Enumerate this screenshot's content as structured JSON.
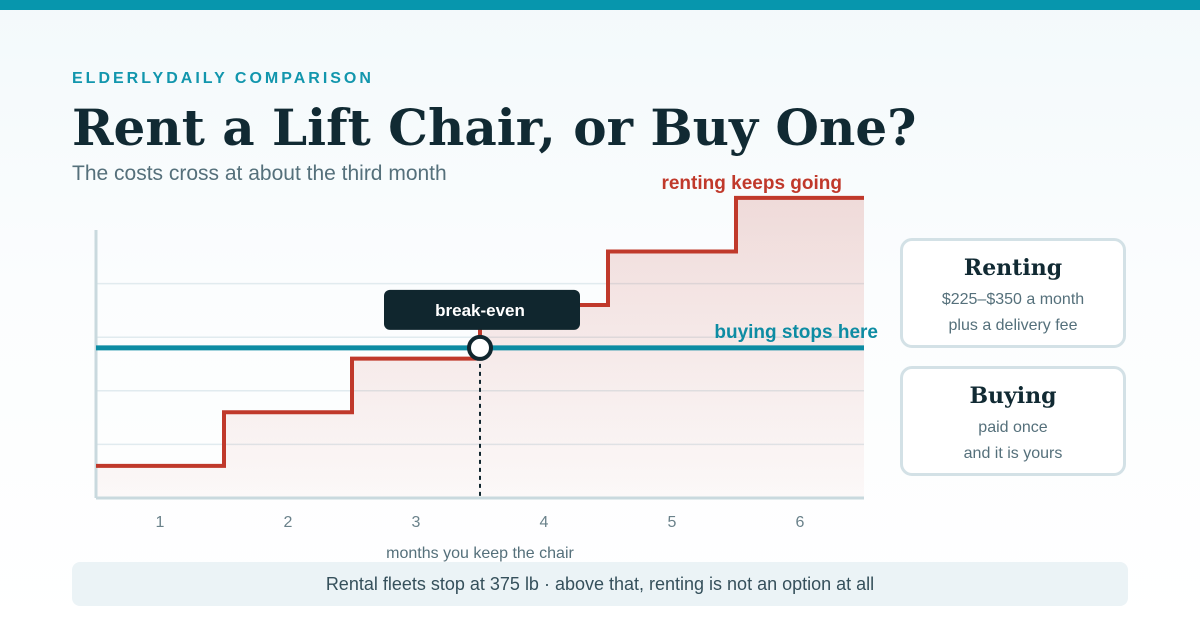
{
  "header": {
    "eyebrow": "ELDERLYDAILY COMPARISON",
    "title": "Rent a Lift Chair, or Buy One?",
    "subtitle": "The costs cross at about the third month"
  },
  "chart_data": {
    "type": "line",
    "step": true,
    "xlabel": "months you keep the chair",
    "ylabel": "",
    "x": [
      1,
      2,
      3,
      4,
      5,
      6
    ],
    "xlim": [
      0.5,
      6.5
    ],
    "ylim": [
      0,
      5
    ],
    "grid": true,
    "series": [
      {
        "name": "",
        "id": "renting",
        "color": "#c0392b",
        "values": [
          0.6,
          1.6,
          2.6,
          3.6,
          4.6,
          5.6
        ]
      },
      {
        "name": "",
        "id": "buying",
        "color": "#0d8ca3",
        "values": [
          2.8,
          2.8,
          2.8,
          2.8,
          2.8,
          2.8
        ]
      }
    ],
    "annotations": {
      "renting_end": "renting keeps going",
      "buying_end": "buying stops here",
      "break_even": "break-even",
      "break_even_x": 3.5
    }
  },
  "cards": {
    "renting": {
      "title": "Renting",
      "line1": "$225–$350 a month",
      "line2": "plus a delivery fee"
    },
    "buying": {
      "title": "Buying",
      "line1": "paid once",
      "line2": "and it is yours"
    }
  },
  "footnote": "Rental fleets stop at 375 lb · above that, renting is not an option at all",
  "colors": {
    "accent": "#0796ad",
    "rent": "#c0392b",
    "buy": "#0d8ca3",
    "dark": "#10262e"
  }
}
